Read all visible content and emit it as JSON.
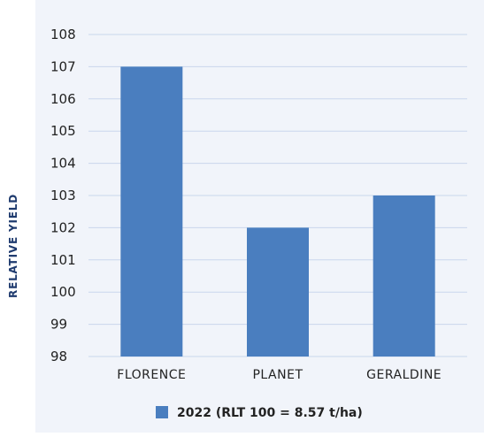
{
  "chart_data": {
    "type": "bar",
    "title": "",
    "xlabel": "",
    "ylabel": "RELATIVE YIELD",
    "categories": [
      "FLORENCE",
      "PLANET",
      "GERALDINE"
    ],
    "series": [
      {
        "name": "2022 (RLT 100 = 8.57 t/ha)",
        "values": [
          107,
          102,
          103
        ]
      }
    ],
    "ylim": [
      98,
      108
    ],
    "yticks": [
      98,
      99,
      100,
      101,
      102,
      103,
      104,
      105,
      106,
      107,
      108
    ],
    "grid": true,
    "legend_position": "bottom-center"
  },
  "colors": {
    "panel_background": "#f1f4fa",
    "bar": "#4a7ebf",
    "gridline": "#c9d7ec",
    "text": "#222222",
    "axis_title": "#1e3a6e"
  }
}
